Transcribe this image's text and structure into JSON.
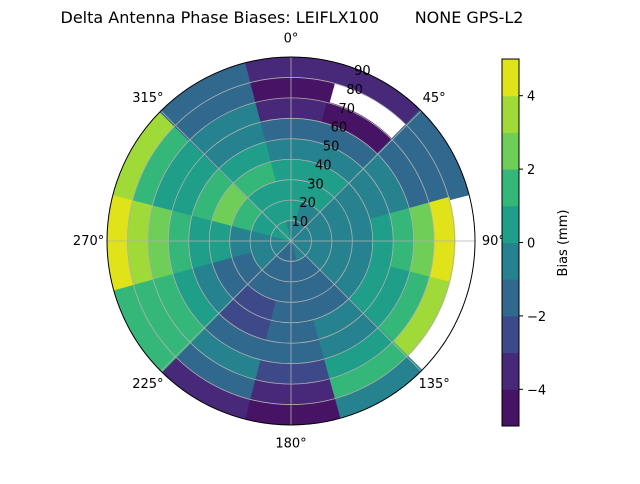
{
  "chart_data": {
    "type": "heatmap",
    "subtype": "polar-filled-contour",
    "title": "Delta Antenna Phase Biases: LEIFLX100       NONE GPS-L2",
    "theta_direction": "clockwise",
    "theta_zero": "north",
    "theta_tick_labels": [
      "0°",
      "45°",
      "90°",
      "135°",
      "180°",
      "225°",
      "270°",
      "315°"
    ],
    "r_tick_labels": [
      "10",
      "20",
      "30",
      "40",
      "50",
      "60",
      "70",
      "80",
      "90"
    ],
    "r_range": [
      0,
      90
    ],
    "grid": true,
    "azimuths": [
      0,
      30,
      60,
      90,
      120,
      150,
      180,
      210,
      240,
      270,
      300,
      330
    ],
    "zenith_centers": [
      5,
      15,
      25,
      35,
      45,
      55,
      65,
      75,
      85
    ],
    "bias_grid": [
      [
        -0.5,
        0.5,
        0.5,
        0.5,
        -0.5,
        -1.5,
        -3.5,
        -4.5,
        -3.5
      ],
      [
        -0.5,
        -0.5,
        0.5,
        0.5,
        -0.5,
        -1.5,
        -4.5,
        null,
        -3.5
      ],
      [
        -0.5,
        -0.5,
        -0.5,
        -0.5,
        -0.5,
        -0.5,
        -1.5,
        -1.5,
        -1.5
      ],
      [
        -0.5,
        -0.5,
        -0.5,
        -0.5,
        0.5,
        1.5,
        2.5,
        4.5,
        null
      ],
      [
        -0.5,
        -0.5,
        -0.5,
        -0.5,
        0.5,
        0.5,
        1.5,
        3.5,
        null
      ],
      [
        -0.5,
        -1.5,
        -1.5,
        -1.5,
        -0.5,
        -0.5,
        0.5,
        1.5,
        -0.5
      ],
      [
        -1.5,
        -1.5,
        -1.5,
        -1.5,
        -1.5,
        -1.5,
        -2.5,
        -3.5,
        -4.5
      ],
      [
        -1.5,
        -1.5,
        -1.5,
        -2.5,
        -2.5,
        -1.5,
        -0.5,
        -1.5,
        -3.5
      ],
      [
        -0.5,
        -0.5,
        -1.5,
        -1.5,
        -0.5,
        0.5,
        1.5,
        1.5,
        1.5
      ],
      [
        -0.5,
        -0.5,
        -0.5,
        0.5,
        0.5,
        1.5,
        2.5,
        3.5,
        4.5
      ],
      [
        0.5,
        0.5,
        1.5,
        2.5,
        1.5,
        0.5,
        0.5,
        1.5,
        3.5
      ],
      [
        0.5,
        0.5,
        0.5,
        1.5,
        0.5,
        -0.5,
        -0.5,
        -1.5,
        -1.5
      ]
    ],
    "colorbar": {
      "label": "Bias (mm)",
      "range": [
        -5,
        5
      ],
      "levels": [
        -5,
        -4,
        -3,
        -2,
        -1,
        0,
        1,
        2,
        3,
        4,
        5
      ],
      "tick_labels": [
        "4",
        "2",
        "0",
        "−2",
        "−4"
      ],
      "tick_values": [
        4,
        2,
        0,
        -2,
        -4
      ],
      "colors": [
        "#471365",
        "#482878",
        "#3e4989",
        "#31688e",
        "#26828e",
        "#1f9e89",
        "#35b779",
        "#6ece58",
        "#a0da39",
        "#e0e319"
      ]
    }
  }
}
